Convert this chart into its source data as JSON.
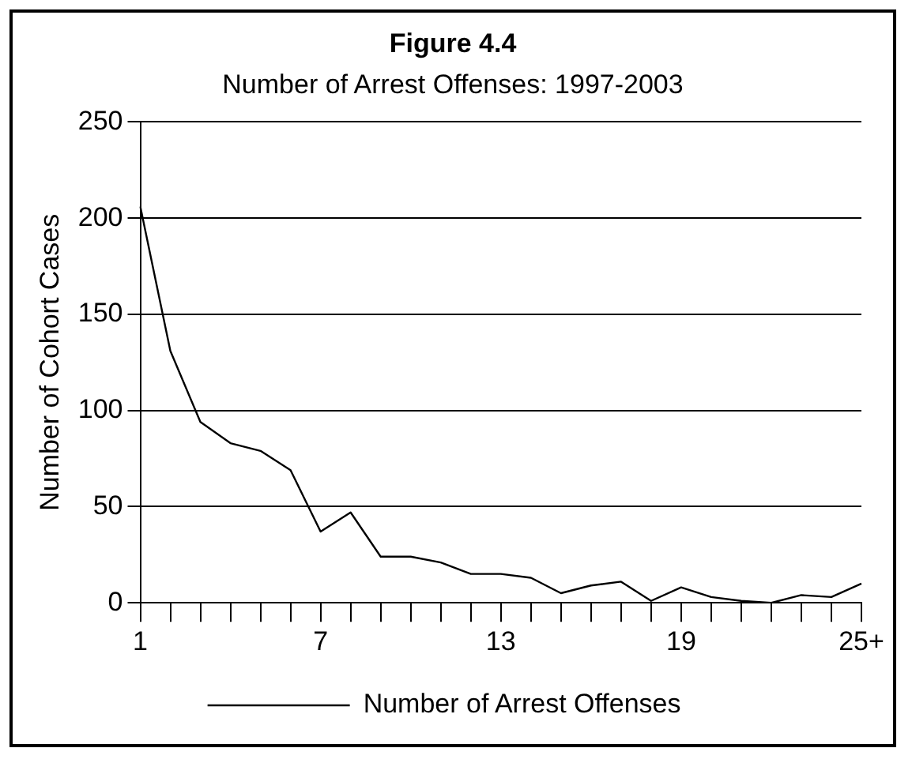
{
  "chart_data": {
    "type": "line",
    "title": "Figure 4.4",
    "subtitle": "Number of Arrest Offenses: 1997-2003",
    "ylabel": "Number of Cohort Cases",
    "categories": [
      "1",
      null,
      null,
      null,
      null,
      null,
      "7",
      null,
      null,
      null,
      null,
      null,
      "13",
      null,
      null,
      null,
      null,
      null,
      "19",
      null,
      null,
      null,
      null,
      null,
      "25+"
    ],
    "series": [
      {
        "name": "Number of Arrest Offenses",
        "color": "#000000",
        "values": [
          206,
          131,
          94,
          83,
          79,
          69,
          37,
          47,
          24,
          24,
          21,
          15,
          15,
          13,
          5,
          9,
          11,
          1,
          8,
          3,
          1,
          0,
          4,
          3,
          10
        ]
      }
    ],
    "ylim": [
      0,
      250
    ],
    "yticks": [
      0,
      50,
      100,
      150,
      200,
      250
    ],
    "grid": "y",
    "legend": "bottom",
    "marker": "none",
    "line_style": "solid"
  }
}
